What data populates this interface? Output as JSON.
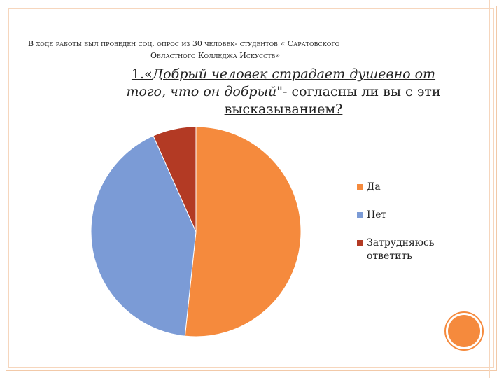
{
  "slide": {
    "header_line1": "В ходе работы был проведён соц. опрос из 30 человек- студентов « Саратовского",
    "header_line2": "Областного Колледжа Искусств»",
    "title_prefix": "1.«",
    "title_italic": "Добрый человек страдает душевно от того, что он добрый\"",
    "title_rest": "- согласны ли вы с эти высказыванием?"
  },
  "chart_data": {
    "type": "pie",
    "title": "",
    "categories": [
      "Да",
      "Нет",
      "Затрудняюсь ответить"
    ],
    "values": [
      15.5,
      12.5,
      2
    ],
    "colors": [
      "#f58a3d",
      "#7b9bd6",
      "#b33a24"
    ],
    "legend_position": "right"
  },
  "colors": {
    "frame": "#f2c9a8",
    "accent_circle": "#f58a3d"
  }
}
